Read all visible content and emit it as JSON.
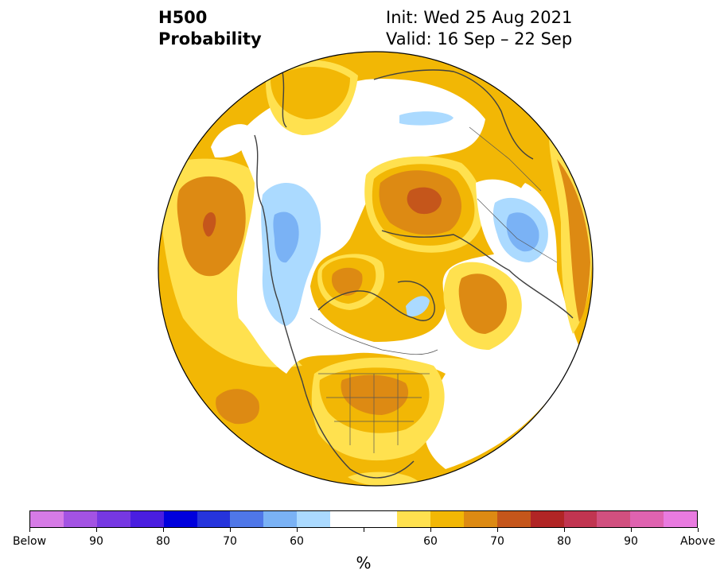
{
  "header": {
    "variable": "H500",
    "product": "Probability",
    "init": "Init: Wed 25 Aug 2021",
    "valid": "Valid: 16 Sep – 22 Sep"
  },
  "map": {
    "projection": "north-polar-stereographic",
    "colors": {
      "above_50": "#ffe14f",
      "above_60": "#f2b705",
      "above_70": "#dd8a13",
      "above_80": "#c5561b",
      "below_50": "#abdaff",
      "below_60": "#7ab2f5",
      "coast": "#404040",
      "border": "#555555"
    }
  },
  "colorbar": {
    "colors": [
      "#d67be6",
      "#a353e3",
      "#7638e2",
      "#4a1ee0",
      "#0000dd",
      "#2634dc",
      "#4f77e8",
      "#7ab2f5",
      "#abdaff",
      "#ffffff",
      "#ffffff",
      "#ffe14f",
      "#f2b705",
      "#dd8a13",
      "#c5561b",
      "#b12525",
      "#c13551",
      "#d1507f",
      "#df63b0",
      "#e97be0"
    ],
    "labels": [
      "Below",
      "90",
      "80",
      "70",
      "60",
      "60",
      "70",
      "80",
      "90",
      "Above"
    ],
    "unit": "%"
  }
}
